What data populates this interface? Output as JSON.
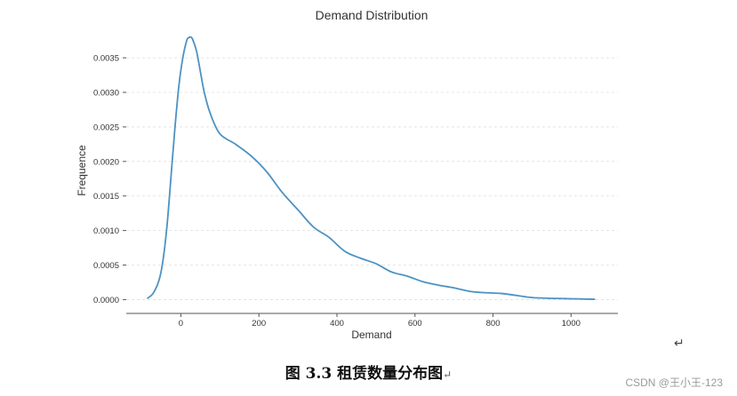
{
  "chart_data": {
    "type": "line",
    "title": "Demand Distribution",
    "xlabel": "Demand",
    "ylabel": "Frequence",
    "xlim": [
      -140,
      1120
    ],
    "ylim": [
      -0.0002,
      0.0039
    ],
    "xticks": [
      0,
      200,
      400,
      600,
      800,
      1000
    ],
    "yticks": [
      0.0,
      0.0005,
      0.001,
      0.0015,
      0.002,
      0.0025,
      0.003,
      0.0035
    ],
    "xtick_labels": [
      "0",
      "200",
      "400",
      "600",
      "800",
      "1000"
    ],
    "ytick_labels": [
      "0.0000",
      "0.0005",
      "0.0010",
      "0.0015",
      "0.0020",
      "0.0025",
      "0.0030",
      "0.0035"
    ],
    "grid": "horizontal-dashed",
    "line_color": "#4c92c3",
    "series": [
      {
        "x": [
          -85,
          -70,
          -55,
          -45,
          -35,
          -25,
          -15,
          -5,
          5,
          15,
          20,
          25,
          30,
          40,
          50,
          60,
          75,
          100,
          140,
          180,
          220,
          260,
          300,
          340,
          380,
          420,
          460,
          500,
          540,
          580,
          620,
          660,
          700,
          740,
          780,
          820,
          860,
          900,
          940,
          980,
          1020,
          1060
        ],
        "y": [
          2e-05,
          0.0001,
          0.0003,
          0.0006,
          0.0011,
          0.0018,
          0.0025,
          0.0031,
          0.0035,
          0.00375,
          0.00379,
          0.0038,
          0.00377,
          0.0036,
          0.0033,
          0.003,
          0.0027,
          0.0024,
          0.00225,
          0.00208,
          0.00185,
          0.00155,
          0.0013,
          0.00105,
          0.0009,
          0.0007,
          0.0006,
          0.00052,
          0.0004,
          0.00034,
          0.00026,
          0.00021,
          0.00017,
          0.00012,
          0.0001,
          9e-05,
          6e-05,
          3e-05,
          2e-05,
          1.5e-05,
          1e-05,
          5e-06
        ]
      }
    ]
  },
  "caption": "图 3.3  租赁数量分布图",
  "caption_mark": "↵",
  "return_mark": "↵",
  "watermark": "CSDN @王小王-123"
}
